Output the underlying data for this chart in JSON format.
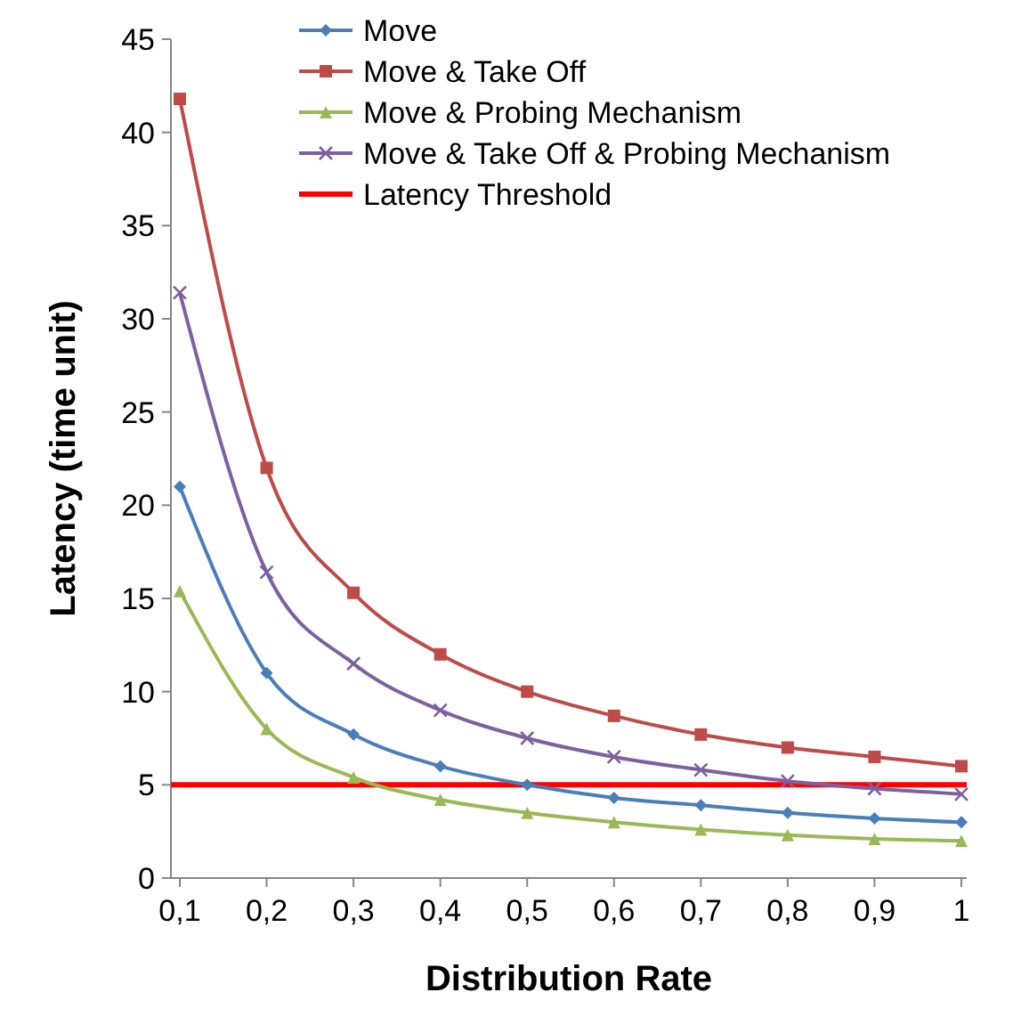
{
  "chart_data": {
    "type": "line",
    "xlabel": "Distribution Rate",
    "ylabel": "Latency (time unit)",
    "categories": [
      "0,1",
      "0,2",
      "0,3",
      "0,4",
      "0,5",
      "0,6",
      "0,7",
      "0,8",
      "0,9",
      "1"
    ],
    "ylim": [
      0,
      45
    ],
    "yticks": [
      0,
      5,
      10,
      15,
      20,
      25,
      30,
      35,
      40,
      45
    ],
    "grid": false,
    "legend": "top right",
    "line_style": "solid",
    "series": [
      {
        "name": "Move",
        "color": "#4a7ebb",
        "marker": "diamond",
        "values": [
          21,
          11,
          7.7,
          6,
          5,
          4.3,
          3.9,
          3.5,
          3.2,
          3
        ]
      },
      {
        "name": "Move & Take Off",
        "color": "#be4b48",
        "marker": "square",
        "values": [
          41.8,
          22,
          15.3,
          12,
          10,
          8.7,
          7.7,
          7,
          6.5,
          6
        ]
      },
      {
        "name": "Move & Probing Mechanism",
        "color": "#98b954",
        "marker": "triangle",
        "values": [
          15.4,
          8,
          5.4,
          4.2,
          3.5,
          3,
          2.6,
          2.3,
          2.1,
          2
        ]
      },
      {
        "name": "Move & Take Off & Probing Mechanism",
        "color": "#7d60a0",
        "marker": "cross",
        "values": [
          31.4,
          16.4,
          11.5,
          9,
          7.5,
          6.5,
          5.8,
          5.2,
          4.8,
          4.5
        ]
      }
    ],
    "ref_lines": [
      {
        "axis": "y",
        "value": 5,
        "label": "Latency Threshold",
        "color": "#ff0000"
      }
    ]
  }
}
